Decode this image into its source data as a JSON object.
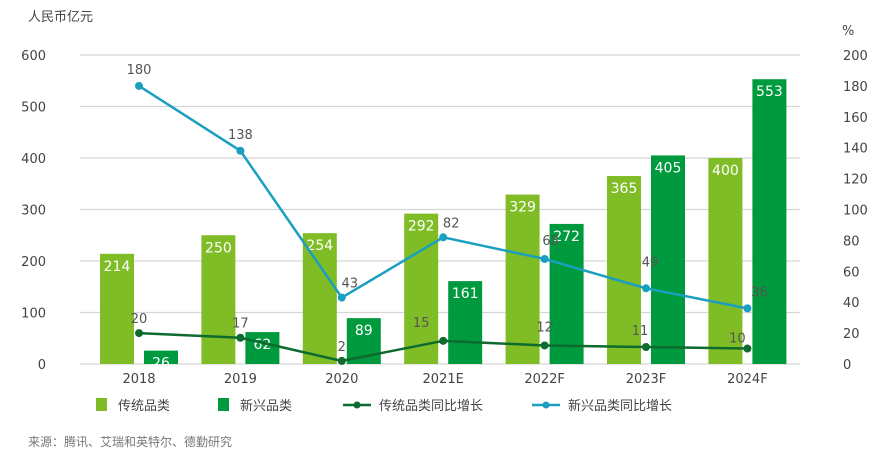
{
  "chart_data": {
    "type": "bar+line",
    "left_axis_label": "人民币亿元",
    "right_axis_label": "%",
    "categories": [
      "2018",
      "2019",
      "2020",
      "2021E",
      "2022F",
      "2023F",
      "2024F"
    ],
    "left_ylim": [
      0,
      600
    ],
    "left_ticks": [
      0,
      100,
      200,
      300,
      400,
      500,
      600
    ],
    "right_ylim": [
      0,
      200
    ],
    "right_ticks": [
      0,
      20,
      40,
      60,
      80,
      100,
      120,
      140,
      160,
      180,
      200
    ],
    "grid": true,
    "legend_position": "bottom",
    "series": [
      {
        "name": "传统品类",
        "type": "bar",
        "axis": "left",
        "color": "#7fbc26",
        "values": [
          214,
          250,
          254,
          292,
          329,
          365,
          400
        ]
      },
      {
        "name": "新兴品类",
        "type": "bar",
        "axis": "left",
        "color": "#009a3e",
        "values": [
          26,
          62,
          89,
          161,
          272,
          405,
          553
        ]
      },
      {
        "name": "传统品类同比增长",
        "type": "line",
        "axis": "right",
        "color": "#0d6b2e",
        "values": [
          20,
          17,
          2,
          15,
          12,
          11,
          10
        ]
      },
      {
        "name": "新兴品类同比增长",
        "type": "line",
        "axis": "right",
        "color": "#1a9fc0",
        "values": [
          180,
          138,
          43,
          82,
          68,
          49,
          36
        ]
      }
    ]
  },
  "source": "来源：腾讯、艾瑞和英特尔、德勤研究"
}
